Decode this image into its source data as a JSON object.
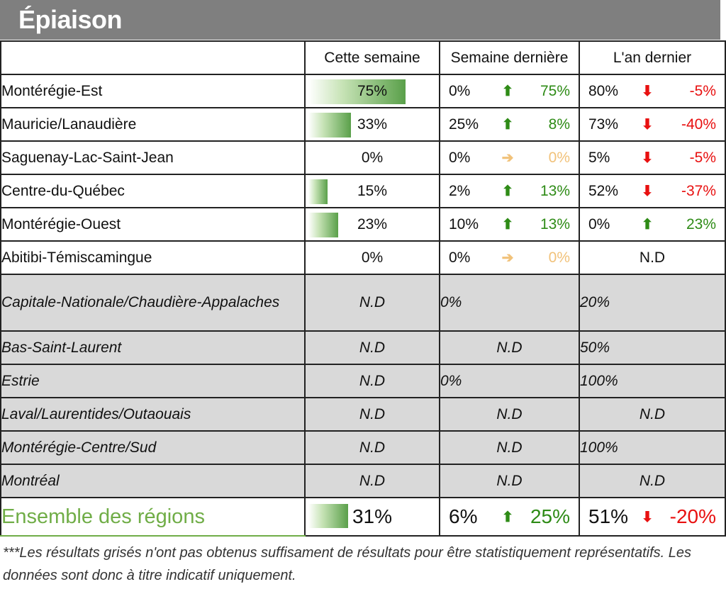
{
  "title": "Épiaison",
  "headers": {
    "this_week": "Cette semaine",
    "last_week": "Semaine dernière",
    "last_year": "L'an dernier"
  },
  "rows": [
    {
      "region": "Montérégie-Est",
      "this_week": "75%",
      "bar": 0.75,
      "lw_val": "0%",
      "lw_arrow": "up",
      "lw_diff": "75%",
      "ly_val": "80%",
      "ly_arrow": "down",
      "ly_diff": "-5%"
    },
    {
      "region": "Mauricie/Lanaudière",
      "this_week": "33%",
      "bar": 0.33,
      "lw_val": "25%",
      "lw_arrow": "up",
      "lw_diff": "8%",
      "ly_val": "73%",
      "ly_arrow": "down",
      "ly_diff": "-40%"
    },
    {
      "region": "Saguenay-Lac-Saint-Jean",
      "this_week": "0%",
      "bar": 0,
      "lw_val": "0%",
      "lw_arrow": "flat",
      "lw_diff": "0%",
      "ly_val": "5%",
      "ly_arrow": "down",
      "ly_diff": "-5%"
    },
    {
      "region": "Centre-du-Québec",
      "this_week": "15%",
      "bar": 0.15,
      "lw_val": "2%",
      "lw_arrow": "up",
      "lw_diff": "13%",
      "ly_val": "52%",
      "ly_arrow": "down",
      "ly_diff": "-37%"
    },
    {
      "region": "Montérégie-Ouest",
      "this_week": "23%",
      "bar": 0.23,
      "lw_val": "10%",
      "lw_arrow": "up",
      "lw_diff": "13%",
      "ly_val": "0%",
      "ly_arrow": "up",
      "ly_diff": "23%"
    },
    {
      "region": "Abitibi-Témiscamingue",
      "this_week": "0%",
      "bar": 0,
      "lw_val": "0%",
      "lw_arrow": "flat",
      "lw_diff": "0%",
      "ly_nd": "N.D"
    }
  ],
  "grey_rows": [
    {
      "region": "Capitale-Nationale/Chaudière-Appalaches",
      "this_week": "N.D",
      "last_week": "0%",
      "last_year": "20%"
    },
    {
      "region": "Bas-Saint-Laurent",
      "this_week": "N.D",
      "last_week_nd": "N.D",
      "last_year": "50%"
    },
    {
      "region": "Estrie",
      "this_week": "N.D",
      "last_week": "0%",
      "last_year": "100%"
    },
    {
      "region": "Laval/Laurentides/Outaouais",
      "this_week": "N.D",
      "last_week_nd": "N.D",
      "last_year_nd": "N.D"
    },
    {
      "region": "Montérégie-Centre/Sud",
      "this_week": "N.D",
      "last_week_nd": "N.D",
      "last_year": "100%"
    },
    {
      "region": "Montréal",
      "this_week": "N.D",
      "last_week_nd": "N.D",
      "last_year_nd": "N.D"
    }
  ],
  "total": {
    "region": "Ensemble des régions",
    "this_week": "31%",
    "bar": 0.31,
    "lw_val": "6%",
    "lw_arrow": "up",
    "lw_diff": "25%",
    "ly_val": "51%",
    "ly_arrow": "down",
    "ly_diff": "-20%"
  },
  "footnote": "***Les résultats grisés n'ont pas obtenus suffisament de résultats pour être statistiquement représentatifs. Les données sont donc à titre indicatif uniquement.",
  "colors": {
    "up": "#2e8b16",
    "down": "#e81010",
    "flat": "#f1c27a",
    "total_label": "#70ad47",
    "title_bg": "#7f7f7f",
    "grey_row": "#d9d9d9"
  },
  "icons": {
    "up": "arrow-up-icon",
    "down": "arrow-down-icon",
    "flat": "arrow-right-icon"
  }
}
